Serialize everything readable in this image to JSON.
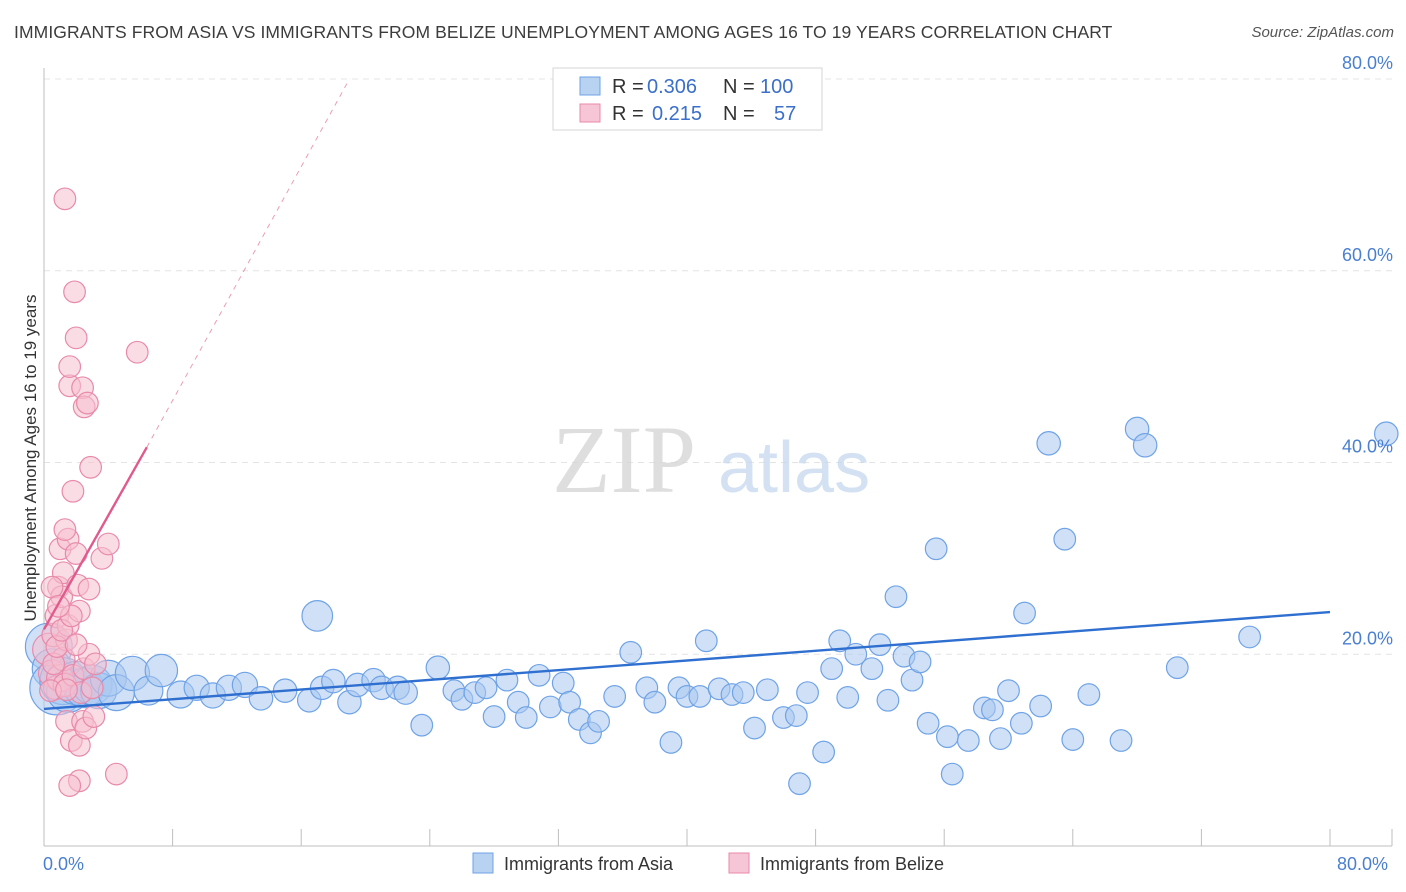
{
  "chart_data": {
    "type": "scatter",
    "title": "IMMIGRANTS FROM ASIA VS IMMIGRANTS FROM BELIZE UNEMPLOYMENT AMONG AGES 16 TO 19 YEARS CORRELATION CHART",
    "source": "Source: ZipAtlas.com",
    "ylabel": "Unemployment Among Ages 16 to 19 years",
    "xlim": [
      0,
      80
    ],
    "ylim": [
      0,
      80
    ],
    "x_tick_labels": [
      "0.0%",
      "80.0%"
    ],
    "y_ticks": [
      20,
      40,
      60,
      80
    ],
    "y_tick_labels": [
      "20.0%",
      "40.0%",
      "60.0%",
      "80.0%"
    ],
    "watermark": {
      "zip": "ZIP",
      "atlas": "atlas"
    },
    "legend": [
      {
        "r_label": "R =",
        "r_value": "0.306",
        "n_label": "N =",
        "n_value": "100"
      },
      {
        "r_label": "R =",
        "r_value": "0.215",
        "n_label": "N =",
        "n_value": "57"
      }
    ],
    "series": [
      {
        "name": "Immigrants from Asia",
        "color": "#6fa3e6",
        "fill": "#a9c8f0",
        "trend": {
          "x0": 0,
          "y0": 14.3,
          "x1": 80,
          "y1": 24.4,
          "color": "#2f6fd0"
        },
        "points": [
          [
            0.3,
            20.8,
            2.6
          ],
          [
            0.5,
            18.5,
            2.2
          ],
          [
            0.8,
            16.5,
            3.0
          ],
          [
            1.2,
            17.2,
            2.6
          ],
          [
            1.5,
            16.2,
            2.4
          ],
          [
            2.0,
            17.0,
            2.4
          ],
          [
            2.5,
            16.5,
            2.2
          ],
          [
            3.0,
            16.8,
            2.2
          ],
          [
            3.4,
            16.2,
            2.0
          ],
          [
            4.0,
            17.5,
            2.0
          ],
          [
            4.5,
            16.0,
            2.0
          ],
          [
            5.5,
            18.0,
            1.9
          ],
          [
            6.5,
            16.2,
            1.6
          ],
          [
            7.3,
            18.3,
            1.8
          ],
          [
            8.5,
            15.8,
            1.5
          ],
          [
            9.5,
            16.5,
            1.4
          ],
          [
            10.5,
            15.7,
            1.4
          ],
          [
            11.5,
            16.5,
            1.4
          ],
          [
            12.5,
            16.8,
            1.4
          ],
          [
            13.5,
            15.4,
            1.3
          ],
          [
            15.0,
            16.2,
            1.3
          ],
          [
            16.5,
            15.2,
            1.3
          ],
          [
            17.0,
            24.0,
            1.7
          ],
          [
            17.3,
            16.5,
            1.3
          ],
          [
            18.0,
            17.2,
            1.3
          ],
          [
            19.0,
            15.0,
            1.3
          ],
          [
            19.5,
            16.8,
            1.3
          ],
          [
            20.5,
            17.3,
            1.3
          ],
          [
            21.0,
            16.5,
            1.3
          ],
          [
            22.0,
            16.5,
            1.3
          ],
          [
            22.5,
            16.0,
            1.3
          ],
          [
            23.5,
            12.6,
            1.2
          ],
          [
            24.5,
            18.6,
            1.3
          ],
          [
            25.5,
            16.2,
            1.2
          ],
          [
            26.0,
            15.3,
            1.2
          ],
          [
            26.8,
            16.0,
            1.2
          ],
          [
            27.5,
            16.5,
            1.2
          ],
          [
            28.0,
            13.5,
            1.2
          ],
          [
            28.8,
            17.3,
            1.2
          ],
          [
            29.5,
            15.0,
            1.2
          ],
          [
            30.0,
            13.4,
            1.2
          ],
          [
            30.8,
            17.8,
            1.2
          ],
          [
            31.5,
            14.5,
            1.2
          ],
          [
            32.3,
            17.0,
            1.2
          ],
          [
            32.7,
            15.0,
            1.2
          ],
          [
            33.3,
            13.2,
            1.2
          ],
          [
            34.0,
            11.8,
            1.2
          ],
          [
            34.5,
            13.0,
            1.2
          ],
          [
            35.5,
            15.6,
            1.2
          ],
          [
            36.5,
            20.2,
            1.2
          ],
          [
            37.5,
            16.5,
            1.2
          ],
          [
            38.0,
            15.0,
            1.2
          ],
          [
            39.0,
            10.8,
            1.2
          ],
          [
            39.5,
            16.5,
            1.2
          ],
          [
            40.0,
            15.6,
            1.2
          ],
          [
            40.8,
            15.6,
            1.2
          ],
          [
            41.2,
            21.4,
            1.2
          ],
          [
            42.0,
            16.4,
            1.2
          ],
          [
            42.8,
            15.8,
            1.2
          ],
          [
            43.5,
            16.0,
            1.2
          ],
          [
            44.2,
            12.3,
            1.2
          ],
          [
            45.0,
            16.3,
            1.2
          ],
          [
            46.0,
            13.4,
            1.2
          ],
          [
            46.8,
            13.6,
            1.2
          ],
          [
            47.0,
            6.5,
            1.2
          ],
          [
            47.5,
            16.0,
            1.2
          ],
          [
            48.5,
            9.8,
            1.2
          ],
          [
            49.0,
            18.5,
            1.2
          ],
          [
            49.5,
            21.4,
            1.2
          ],
          [
            50.0,
            15.5,
            1.2
          ],
          [
            50.5,
            20.0,
            1.2
          ],
          [
            51.5,
            18.5,
            1.2
          ],
          [
            52.0,
            21.0,
            1.2
          ],
          [
            52.5,
            15.2,
            1.2
          ],
          [
            53.0,
            26.0,
            1.2
          ],
          [
            53.5,
            19.8,
            1.2
          ],
          [
            54.0,
            17.3,
            1.2
          ],
          [
            54.5,
            19.2,
            1.2
          ],
          [
            55.0,
            12.8,
            1.2
          ],
          [
            55.5,
            31.0,
            1.2
          ],
          [
            56.2,
            11.4,
            1.2
          ],
          [
            56.5,
            7.5,
            1.2
          ],
          [
            57.5,
            11.0,
            1.2
          ],
          [
            58.5,
            14.4,
            1.2
          ],
          [
            59.0,
            14.2,
            1.2
          ],
          [
            59.5,
            11.2,
            1.2
          ],
          [
            60.0,
            16.2,
            1.2
          ],
          [
            60.8,
            12.8,
            1.2
          ],
          [
            61.0,
            24.3,
            1.2
          ],
          [
            62.0,
            14.6,
            1.2
          ],
          [
            62.5,
            42.0,
            1.3
          ],
          [
            63.5,
            32.0,
            1.2
          ],
          [
            64.0,
            11.1,
            1.2
          ],
          [
            65.0,
            15.8,
            1.2
          ],
          [
            67.0,
            11.0,
            1.2
          ],
          [
            68.0,
            43.5,
            1.3
          ],
          [
            68.5,
            41.8,
            1.3
          ],
          [
            70.5,
            18.6,
            1.2
          ],
          [
            75.0,
            21.8,
            1.2
          ],
          [
            83.5,
            43.0,
            1.3
          ]
        ]
      },
      {
        "name": "Immigrants from Belize",
        "color": "#e88aaa",
        "fill": "#f5bfd0",
        "trend": {
          "x0": 0,
          "y0": 22.6,
          "x1": 6.4,
          "y1": 41.6,
          "color": "#e05a8c",
          "ext_x1": 19.0,
          "ext_y1": 80.0
        },
        "points": [
          [
            0.3,
            20.5,
            1.8
          ],
          [
            0.5,
            18.0,
            1.5
          ],
          [
            0.6,
            22.0,
            1.3
          ],
          [
            0.7,
            16.5,
            1.3
          ],
          [
            0.8,
            24.0,
            1.3
          ],
          [
            0.9,
            27.0,
            1.2
          ],
          [
            1.0,
            31.0,
            1.2
          ],
          [
            1.0,
            17.5,
            1.5
          ],
          [
            1.1,
            26.0,
            1.2
          ],
          [
            1.2,
            28.5,
            1.2
          ],
          [
            1.2,
            19.5,
            1.3
          ],
          [
            1.3,
            16.8,
            1.3
          ],
          [
            1.4,
            21.5,
            1.2
          ],
          [
            1.4,
            13.0,
            1.2
          ],
          [
            1.5,
            23.0,
            1.2
          ],
          [
            1.5,
            32.0,
            1.2
          ],
          [
            1.6,
            48.0,
            1.2
          ],
          [
            1.6,
            50.0,
            1.2
          ],
          [
            1.7,
            11.0,
            1.2
          ],
          [
            1.8,
            17.8,
            1.2
          ],
          [
            1.8,
            37.0,
            1.2
          ],
          [
            1.9,
            57.8,
            1.2
          ],
          [
            2.0,
            53.0,
            1.2
          ],
          [
            2.0,
            30.5,
            1.2
          ],
          [
            2.1,
            27.2,
            1.2
          ],
          [
            2.2,
            10.5,
            1.2
          ],
          [
            2.2,
            24.5,
            1.2
          ],
          [
            2.3,
            16.0,
            1.2
          ],
          [
            2.4,
            47.8,
            1.2
          ],
          [
            2.4,
            13.0,
            1.2
          ],
          [
            2.5,
            45.8,
            1.2
          ],
          [
            2.5,
            18.5,
            1.2
          ],
          [
            2.6,
            12.3,
            1.2
          ],
          [
            2.7,
            46.2,
            1.2
          ],
          [
            2.8,
            26.8,
            1.2
          ],
          [
            2.8,
            20.0,
            1.2
          ],
          [
            2.9,
            39.5,
            1.2
          ],
          [
            3.0,
            16.5,
            1.2
          ],
          [
            3.1,
            13.5,
            1.2
          ],
          [
            3.2,
            19.0,
            1.2
          ],
          [
            2.2,
            6.8,
            1.2
          ],
          [
            1.6,
            6.3,
            1.2
          ],
          [
            3.6,
            30.0,
            1.2
          ],
          [
            4.0,
            31.5,
            1.2
          ],
          [
            4.5,
            7.5,
            1.2
          ],
          [
            5.8,
            51.5,
            1.2
          ],
          [
            1.3,
            67.5,
            1.2
          ],
          [
            0.4,
            16.2,
            1.2
          ],
          [
            0.6,
            19.0,
            1.2
          ],
          [
            0.8,
            20.8,
            1.2
          ],
          [
            1.1,
            22.5,
            1.2
          ],
          [
            1.3,
            33.0,
            1.2
          ],
          [
            1.7,
            24.0,
            1.2
          ],
          [
            2.0,
            21.0,
            1.2
          ],
          [
            0.5,
            27.0,
            1.2
          ],
          [
            0.9,
            25.0,
            1.2
          ],
          [
            1.4,
            16.3,
            1.2
          ]
        ]
      }
    ]
  },
  "bottom_legend": [
    "Immigrants from Asia",
    "Immigrants from Belize"
  ]
}
